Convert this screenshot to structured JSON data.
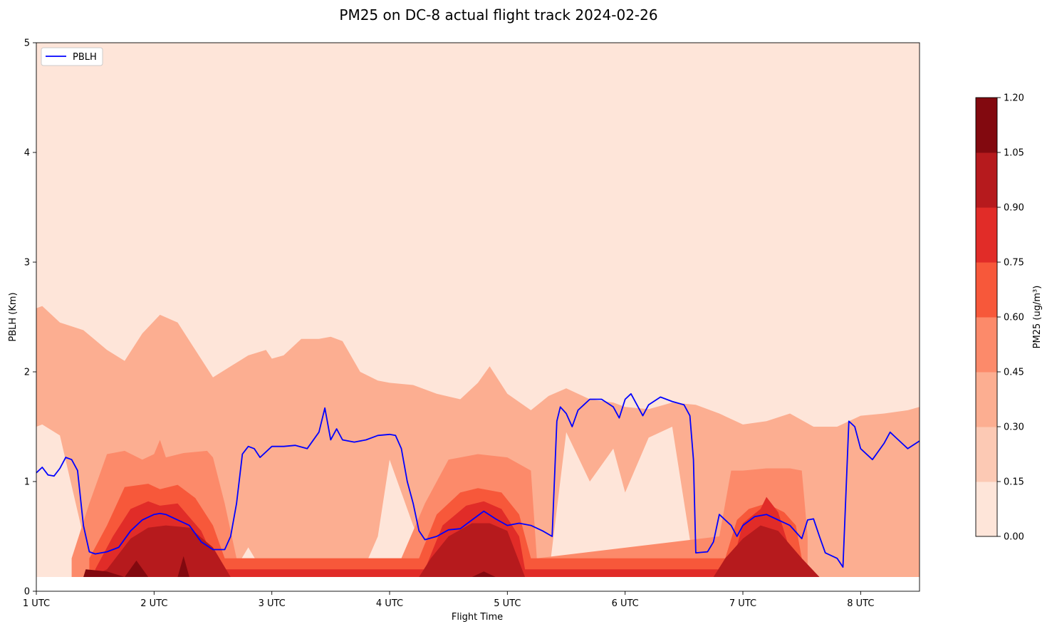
{
  "chart_data": {
    "type": "area",
    "title": "PM25 on DC-8 actual flight track 2024-02-26",
    "xlabel": "Flight Time",
    "ylabel": "PBLH (Km)",
    "xlim": [
      1.0,
      8.5
    ],
    "ylim": [
      0,
      5
    ],
    "x_ticks": [
      "1 UTC",
      "2 UTC",
      "3 UTC",
      "4 UTC",
      "5 UTC",
      "6 UTC",
      "7 UTC",
      "8 UTC"
    ],
    "x_tick_values": [
      1,
      2,
      3,
      4,
      5,
      6,
      7,
      8
    ],
    "y_ticks": [
      "0",
      "1",
      "2",
      "3",
      "4",
      "5"
    ],
    "y_tick_values": [
      0,
      1,
      2,
      3,
      4,
      5
    ],
    "legend": {
      "placement": "top-left",
      "entries": [
        "PBLH"
      ]
    },
    "colorbar": {
      "label": "PM25 (ug/m³)",
      "ticks": [
        "0.00",
        "0.15",
        "0.30",
        "0.45",
        "0.60",
        "0.75",
        "0.90",
        "1.05",
        "1.20"
      ],
      "colors": [
        "#fee5d9",
        "#fcc9b4",
        "#fcae91",
        "#fc8a6a",
        "#f7583a",
        "#e12c28",
        "#b61a1d",
        "#82090f"
      ]
    },
    "contour_fill": {
      "data_bottom_km": 0.13,
      "background_color": "#fee5d9",
      "layers": [
        {
          "level": "0.30-0.45",
          "color": "#fcae91",
          "x": [
            1.0,
            1.05,
            1.2,
            1.4,
            1.6,
            1.75,
            1.9,
            2.05,
            2.2,
            2.35,
            2.5,
            2.65,
            2.8,
            2.95,
            3.0,
            3.1,
            3.25,
            3.4,
            3.5,
            3.6,
            3.75,
            3.9,
            4.0,
            4.2,
            4.4,
            4.6,
            4.75,
            4.85,
            5.0,
            5.2,
            5.35,
            5.5,
            5.7,
            5.9,
            6.0,
            6.2,
            6.4,
            6.6,
            6.8,
            7.0,
            7.2,
            7.4,
            7.6,
            7.8,
            8.0,
            8.2,
            8.4,
            8.5
          ],
          "top": [
            2.58,
            2.6,
            2.45,
            2.38,
            2.2,
            2.1,
            2.35,
            2.52,
            2.45,
            2.2,
            1.95,
            2.05,
            2.15,
            2.2,
            2.12,
            2.15,
            2.3,
            2.3,
            2.32,
            2.28,
            2.0,
            1.92,
            1.9,
            1.88,
            1.8,
            1.75,
            1.9,
            2.05,
            1.8,
            1.65,
            1.78,
            1.85,
            1.75,
            1.72,
            1.68,
            1.66,
            1.72,
            1.7,
            1.62,
            1.52,
            1.55,
            1.62,
            1.5,
            1.5,
            1.6,
            1.62,
            1.65,
            1.68
          ],
          "bottom": [
            1.5,
            1.52,
            1.42,
            0.5,
            0.3,
            0.13,
            0.13,
            0.13,
            0.13,
            0.13,
            0.13,
            0.13,
            0.4,
            0.13,
            0.13,
            0.13,
            0.13,
            0.13,
            0.13,
            0.13,
            0.13,
            0.5,
            1.2,
            0.6,
            0.13,
            0.13,
            0.13,
            0.13,
            0.13,
            0.13,
            0.13,
            1.45,
            1.0,
            1.3,
            0.9,
            1.4,
            1.5,
            0.13,
            0.13,
            0.13,
            0.13,
            0.13,
            0.13,
            0.13,
            0.13,
            0.13,
            0.13,
            0.13
          ]
        },
        {
          "level": "0.45-0.60",
          "color": "#fc8a6a",
          "x": [
            1.3,
            1.45,
            1.6,
            1.75,
            1.9,
            2.0,
            2.05,
            2.1,
            2.25,
            2.45,
            2.5,
            2.6,
            2.7,
            4.1,
            4.3,
            4.5,
            4.75,
            5.0,
            5.2,
            5.25,
            6.8,
            6.9,
            7.0,
            7.2,
            7.4,
            7.5,
            7.55
          ],
          "top": [
            0.3,
            0.8,
            1.25,
            1.28,
            1.2,
            1.25,
            1.38,
            1.22,
            1.26,
            1.28,
            1.22,
            0.8,
            0.3,
            0.3,
            0.8,
            1.2,
            1.25,
            1.22,
            1.1,
            0.3,
            0.5,
            1.1,
            1.1,
            1.12,
            1.12,
            1.1,
            0.5
          ]
        },
        {
          "level": "0.60-0.75",
          "color": "#f7583a",
          "x": [
            1.45,
            1.6,
            1.75,
            1.95,
            2.05,
            2.2,
            2.35,
            2.5,
            2.6,
            4.25,
            4.4,
            4.6,
            4.75,
            4.95,
            5.1,
            5.2,
            6.85,
            6.95,
            7.05,
            7.2,
            7.35,
            7.45,
            7.5
          ],
          "top": [
            0.3,
            0.6,
            0.95,
            0.98,
            0.93,
            0.97,
            0.85,
            0.6,
            0.3,
            0.3,
            0.7,
            0.9,
            0.94,
            0.9,
            0.7,
            0.3,
            0.3,
            0.65,
            0.75,
            0.8,
            0.72,
            0.6,
            0.3
          ]
        },
        {
          "level": "0.75-0.90",
          "color": "#e12c28",
          "x": [
            1.5,
            1.65,
            1.8,
            1.95,
            2.05,
            2.2,
            2.4,
            2.55,
            4.3,
            4.45,
            4.65,
            4.8,
            4.95,
            5.1,
            5.15,
            6.9,
            7.0,
            7.15,
            7.2,
            7.3,
            7.45
          ],
          "top": [
            0.2,
            0.5,
            0.75,
            0.82,
            0.78,
            0.8,
            0.55,
            0.2,
            0.2,
            0.6,
            0.78,
            0.82,
            0.75,
            0.5,
            0.2,
            0.2,
            0.62,
            0.75,
            0.86,
            0.72,
            0.2
          ]
        },
        {
          "level": "0.90-1.05",
          "color": "#b61a1d",
          "x": [
            1.45,
            1.6,
            1.8,
            1.95,
            2.1,
            2.3,
            2.5,
            2.65,
            4.25,
            4.35,
            4.5,
            4.7,
            4.85,
            5.0,
            5.15,
            6.75,
            6.85,
            7.0,
            7.15,
            7.3,
            7.5,
            7.65
          ],
          "top": [
            0.13,
            0.2,
            0.48,
            0.58,
            0.6,
            0.58,
            0.4,
            0.13,
            0.13,
            0.3,
            0.5,
            0.62,
            0.62,
            0.55,
            0.13,
            0.13,
            0.3,
            0.48,
            0.6,
            0.55,
            0.3,
            0.13
          ]
        },
        {
          "level": "1.05-1.20",
          "color": "#82090f",
          "x": [
            1.4,
            1.42,
            1.6,
            1.75,
            1.85,
            1.95,
            2.2,
            2.25,
            2.3,
            4.7,
            4.8,
            4.9
          ],
          "top": [
            0.13,
            0.2,
            0.18,
            0.13,
            0.28,
            0.13,
            0.13,
            0.32,
            0.13,
            0.13,
            0.18,
            0.13
          ]
        }
      ]
    },
    "series": [
      {
        "name": "PBLH",
        "color": "#0000ff",
        "x": [
          1.0,
          1.05,
          1.1,
          1.15,
          1.2,
          1.25,
          1.3,
          1.35,
          1.4,
          1.45,
          1.5,
          1.6,
          1.7,
          1.8,
          1.9,
          2.0,
          2.05,
          2.1,
          2.2,
          2.3,
          2.4,
          2.5,
          2.6,
          2.65,
          2.7,
          2.75,
          2.8,
          2.85,
          2.9,
          3.0,
          3.1,
          3.2,
          3.3,
          3.4,
          3.45,
          3.5,
          3.55,
          3.6,
          3.7,
          3.8,
          3.9,
          4.0,
          4.05,
          4.1,
          4.15,
          4.2,
          4.25,
          4.3,
          4.4,
          4.5,
          4.6,
          4.7,
          4.8,
          4.9,
          5.0,
          5.1,
          5.2,
          5.3,
          5.38,
          5.42,
          5.45,
          5.5,
          5.55,
          5.6,
          5.65,
          5.7,
          5.8,
          5.9,
          5.95,
          6.0,
          6.05,
          6.1,
          6.15,
          6.2,
          6.3,
          6.4,
          6.5,
          6.55,
          6.58,
          6.6,
          6.7,
          6.75,
          6.8,
          6.9,
          6.95,
          7.0,
          7.1,
          7.2,
          7.3,
          7.4,
          7.5,
          7.55,
          7.6,
          7.65,
          7.7,
          7.8,
          7.85,
          7.9,
          7.95,
          8.0,
          8.1,
          8.2,
          8.25,
          8.3,
          8.4,
          8.5
        ],
        "y": [
          1.08,
          1.13,
          1.06,
          1.05,
          1.12,
          1.22,
          1.2,
          1.1,
          0.6,
          0.36,
          0.34,
          0.36,
          0.4,
          0.55,
          0.65,
          0.7,
          0.71,
          0.7,
          0.65,
          0.6,
          0.45,
          0.38,
          0.38,
          0.5,
          0.8,
          1.25,
          1.32,
          1.3,
          1.22,
          1.32,
          1.32,
          1.33,
          1.3,
          1.45,
          1.67,
          1.38,
          1.48,
          1.38,
          1.36,
          1.38,
          1.42,
          1.43,
          1.42,
          1.3,
          1.0,
          0.8,
          0.55,
          0.47,
          0.5,
          0.56,
          0.57,
          0.65,
          0.73,
          0.66,
          0.6,
          0.62,
          0.6,
          0.55,
          0.5,
          1.55,
          1.68,
          1.62,
          1.5,
          1.65,
          1.7,
          1.75,
          1.75,
          1.68,
          1.58,
          1.75,
          1.8,
          1.7,
          1.6,
          1.7,
          1.77,
          1.73,
          1.7,
          1.6,
          1.2,
          0.35,
          0.36,
          0.45,
          0.7,
          0.6,
          0.5,
          0.6,
          0.68,
          0.7,
          0.65,
          0.6,
          0.48,
          0.65,
          0.66,
          0.5,
          0.35,
          0.3,
          0.22,
          1.55,
          1.5,
          1.3,
          1.2,
          1.35,
          1.45,
          1.4,
          1.3,
          1.37
        ]
      }
    ]
  }
}
